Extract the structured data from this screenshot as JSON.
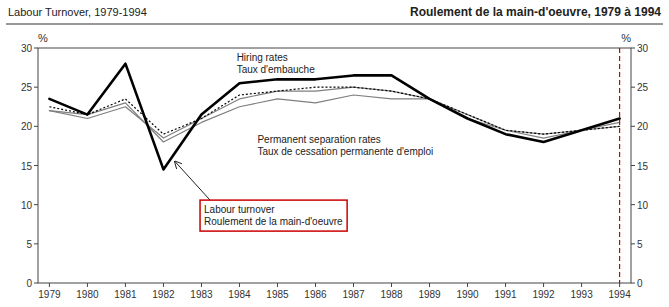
{
  "chart_data": {
    "type": "line",
    "title": "Labour Turnover, 1979-1994",
    "subtitle": "Roulement de la main-d'oeuvre, 1979 à 1994",
    "y_label": "%",
    "y2_label": "%",
    "x": [
      1979,
      1980,
      1981,
      1982,
      1983,
      1984,
      1985,
      1986,
      1987,
      1988,
      1989,
      1990,
      1991,
      1992,
      1993,
      1994
    ],
    "xlim": [
      1978.7,
      1994.3
    ],
    "xticks": [
      1979,
      1980,
      1981,
      1982,
      1983,
      1984,
      1985,
      1986,
      1987,
      1988,
      1989,
      1990,
      1991,
      1992,
      1993,
      1994
    ],
    "ylim": [
      0,
      30
    ],
    "yticks": [
      0,
      5,
      10,
      15,
      20,
      25,
      30
    ],
    "y2lim": [
      0,
      30
    ],
    "y2ticks": [
      0,
      5,
      10,
      15,
      20,
      25,
      30
    ],
    "grid": false,
    "series": [
      {
        "color": "#7f7f7f",
        "line_style": "solid",
        "values": [
          22.0,
          21.0,
          22.5,
          18.5,
          21.0,
          23.5,
          24.5,
          24.5,
          25.0,
          24.5,
          23.5,
          21.5,
          19.5,
          19.0,
          19.5,
          20.0
        ]
      },
      {
        "color": "#7f7f7f",
        "line_style": "solid",
        "values": [
          22.0,
          21.5,
          23.0,
          18.0,
          20.5,
          22.5,
          23.5,
          23.0,
          24.0,
          23.5,
          23.5,
          21.0,
          19.5,
          18.5,
          19.5,
          20.5
        ]
      },
      {
        "color": "#000000",
        "line_style": "dotted",
        "values": [
          22.5,
          21.5,
          23.5,
          19.0,
          21.0,
          24.0,
          24.5,
          25.0,
          25.0,
          24.5,
          23.5,
          21.5,
          19.5,
          19.0,
          19.5,
          20.0
        ]
      },
      {
        "color": "#000000",
        "line_style": "thick",
        "values": [
          23.5,
          21.5,
          28.0,
          14.5,
          21.5,
          25.5,
          26.0,
          26.0,
          26.5,
          26.5,
          23.5,
          21.0,
          19.0,
          18.0,
          19.5,
          21.0
        ]
      }
    ],
    "reference_lines": [
      {
        "x": 1994,
        "color": "#cc0000",
        "line_style": "dashed"
      }
    ],
    "annotations": [
      {
        "text": "Hiring rates\nTaux d'embauche"
      },
      {
        "text": "Permanent separation rates\nTaux de cessation permanente d'emploi"
      },
      {
        "text": "Labour turnover\nRoulement de la main-d'oeuvre",
        "color": "#cc0000"
      }
    ]
  }
}
